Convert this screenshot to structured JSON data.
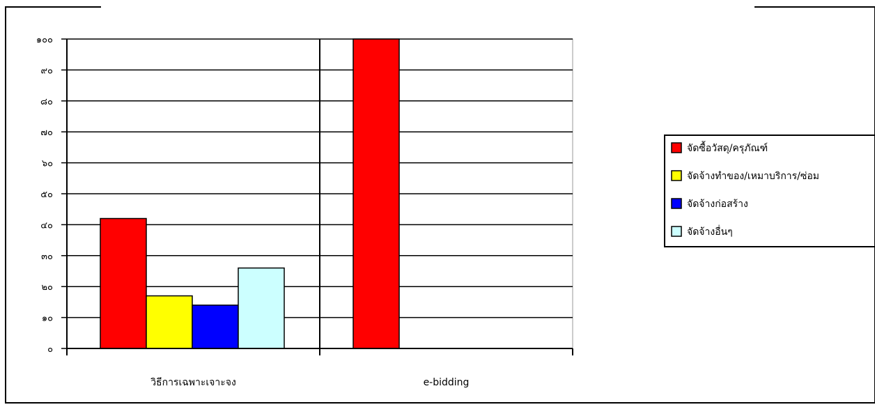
{
  "chart_data": {
    "type": "bar",
    "categories": [
      "วิธีการเฉพาะเจาะจง",
      "e-bidding"
    ],
    "series": [
      {
        "name": "จัดซื้อวัสดุ/ครุภัณฑ์",
        "color": "#FF0000",
        "values": [
          42,
          100
        ]
      },
      {
        "name": "จัดจ้างทำของ/เหมาบริการ/ซ่อม",
        "color": "#FFFF00",
        "values": [
          17,
          0
        ]
      },
      {
        "name": "จัดจ้างก่อสร้าง",
        "color": "#0000FF",
        "values": [
          14,
          0
        ]
      },
      {
        "name": "จัดจ้างอื่นๆ",
        "color": "#CCFFFF",
        "values": [
          26,
          0
        ]
      }
    ],
    "y_ticks": [
      "๐",
      "๑๐",
      "๒๐",
      "๓๐",
      "๔๐",
      "๕๐",
      "๖๐",
      "๗๐",
      "๘๐",
      "๙๐",
      "๑๐๐"
    ],
    "ylim": [
      0,
      100
    ],
    "grid": true,
    "legend_position": "right"
  }
}
